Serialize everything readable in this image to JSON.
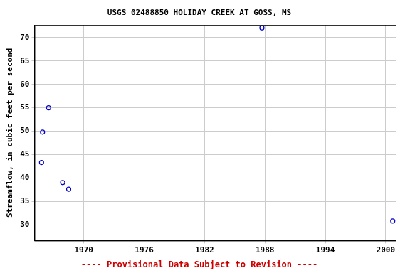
{
  "chart_data": {
    "type": "scatter",
    "title": "USGS 02488850 HOLIDAY CREEK AT GOSS, MS",
    "footnote": "---- Provisional Data Subject to Revision ----",
    "y_label": "Streamflow, in cubic feet per second",
    "x": [
      1965.8,
      1965.9,
      1966.5,
      1967.9,
      1968.5,
      1987.7,
      2000.7
    ],
    "values": [
      43.3,
      49.8,
      55.0,
      39.0,
      37.6,
      72.1,
      30.8
    ],
    "color": "#0000cc",
    "marker": "circle",
    "xlim": [
      1965.1,
      2001
    ],
    "xticks": [
      1970,
      1976,
      1982,
      1988,
      1994,
      2000
    ],
    "ylim": [
      26.6,
      72.7
    ],
    "yticks": [
      30,
      35,
      40,
      45,
      50,
      55,
      60,
      65,
      70
    ],
    "grid": true
  }
}
